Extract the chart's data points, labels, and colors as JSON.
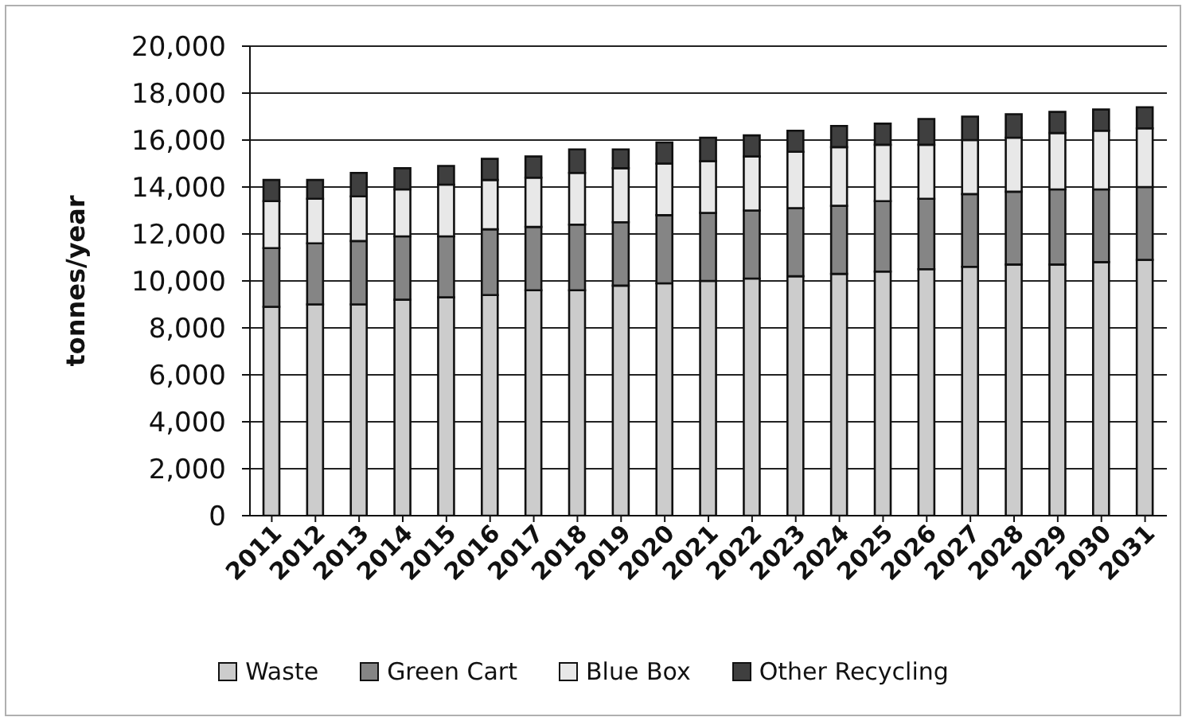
{
  "chart_data": {
    "type": "bar",
    "stacked": true,
    "ylabel": "tonnes/year",
    "categories": [
      "2011",
      "2012",
      "2013",
      "2014",
      "2015",
      "2016",
      "2017",
      "2018",
      "2019",
      "2020",
      "2021",
      "2022",
      "2023",
      "2024",
      "2025",
      "2026",
      "2027",
      "2028",
      "2029",
      "2030",
      "2031"
    ],
    "series": [
      {
        "name": "Waste",
        "color": "#cccccc",
        "values": [
          8900,
          9000,
          9000,
          9200,
          9300,
          9400,
          9600,
          9600,
          9800,
          9900,
          10000,
          10100,
          10200,
          10300,
          10400,
          10500,
          10600,
          10700,
          10700,
          10800,
          10900
        ]
      },
      {
        "name": "Green Cart",
        "color": "#858585",
        "values": [
          2500,
          2600,
          2700,
          2700,
          2600,
          2800,
          2700,
          2800,
          2700,
          2900,
          2900,
          2900,
          2900,
          2900,
          3000,
          3000,
          3100,
          3100,
          3200,
          3100,
          3100
        ]
      },
      {
        "name": "Blue Box",
        "color": "#e8e8e8",
        "values": [
          2000,
          1900,
          1900,
          2000,
          2200,
          2100,
          2100,
          2200,
          2300,
          2200,
          2200,
          2300,
          2400,
          2500,
          2400,
          2300,
          2300,
          2300,
          2400,
          2500,
          2500
        ]
      },
      {
        "name": "Other Recycling",
        "color": "#3f3f3f",
        "values": [
          900,
          800,
          1000,
          900,
          800,
          900,
          900,
          1000,
          800,
          900,
          1000,
          900,
          900,
          900,
          900,
          1100,
          1000,
          1000,
          900,
          900,
          900
        ]
      }
    ],
    "ylim": [
      0,
      20000
    ],
    "yticks": [
      0,
      {
        "value": 2000,
        "label": "2,000"
      },
      {
        "value": 4000,
        "label": "4,000"
      },
      {
        "value": 6000,
        "label": "6,000"
      },
      {
        "value": 8000,
        "label": "8,000"
      },
      {
        "value": 10000,
        "label": "10,000"
      },
      {
        "value": 12000,
        "label": "12,000"
      },
      {
        "value": 14000,
        "label": "14,000"
      },
      {
        "value": 16000,
        "label": "16,000"
      },
      {
        "value": 18000,
        "label": "18,000"
      },
      {
        "value": 20000,
        "label": "20,000"
      }
    ],
    "grid": "y",
    "legend": "bottom"
  }
}
